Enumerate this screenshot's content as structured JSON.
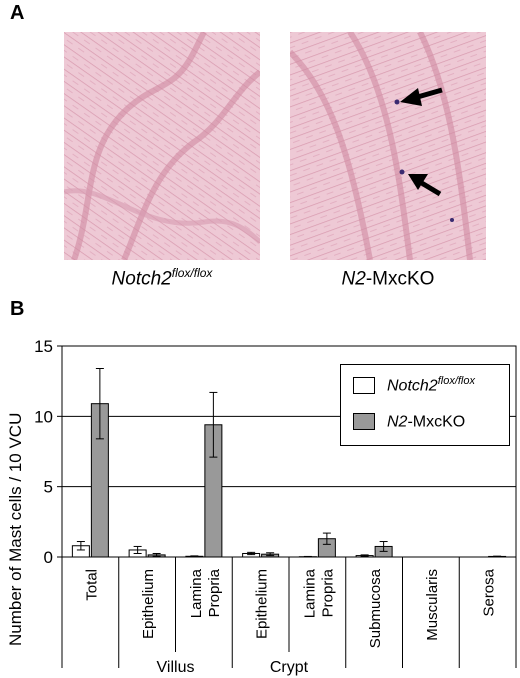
{
  "panel_a": {
    "label": "A",
    "images": [
      {
        "caption_main": "Notch2",
        "caption_sup": "flox/flox",
        "caption_rest": ""
      },
      {
        "caption_main": "N2",
        "caption_sup": "",
        "caption_rest": "-MxcKO"
      }
    ]
  },
  "panel_b": {
    "label": "B",
    "ylabel": "Number of Mast cells / 10 VCU"
  },
  "legend": [
    {
      "main": "Notch2",
      "sup": "flox/flox",
      "rest": "",
      "color": "#ffffff"
    },
    {
      "main": "N2",
      "sup": "",
      "rest": "-MxcKO",
      "color": "#999999"
    }
  ],
  "colors": {
    "control": "#ffffff",
    "knockout": "#999999",
    "tissue": "#ecc6d2",
    "arrow": "#000000"
  },
  "chart_data": {
    "type": "bar",
    "ylim": [
      0,
      15
    ],
    "yticks": [
      0,
      5,
      10,
      15
    ],
    "grid": "horizontal at 5, 10, 15",
    "legend_placement": "top-right",
    "categories": [
      "Total",
      "Epithelium",
      "Lamina Propria",
      "Epithelium",
      "Lamina Propria",
      "Submucosa",
      "Muscularis",
      "Serosa"
    ],
    "category_lines": [
      [
        "Total"
      ],
      [
        "Epithelium"
      ],
      [
        "Lamina",
        "Propria"
      ],
      [
        "Epithelium"
      ],
      [
        "Lamina",
        "Propria"
      ],
      [
        "Submucosa"
      ],
      [
        "Muscularis"
      ],
      [
        "Serosa"
      ]
    ],
    "groups": [
      {
        "label": "Villus",
        "start": 1,
        "end": 2
      },
      {
        "label": "Crypt",
        "start": 3,
        "end": 4
      }
    ],
    "series": [
      {
        "name": "Notch2flox/flox",
        "values": [
          0.8,
          0.5,
          0.05,
          0.25,
          0.02,
          0.1,
          0,
          0
        ],
        "errors": [
          0.3,
          0.25,
          0.03,
          0.08,
          0.02,
          0.05,
          0,
          0
        ]
      },
      {
        "name": "N2-MxcKO",
        "values": [
          10.9,
          0.15,
          9.4,
          0.2,
          1.3,
          0.75,
          0,
          0.04
        ],
        "errors": [
          2.5,
          0.1,
          2.3,
          0.1,
          0.4,
          0.35,
          0,
          0.02
        ]
      }
    ]
  }
}
